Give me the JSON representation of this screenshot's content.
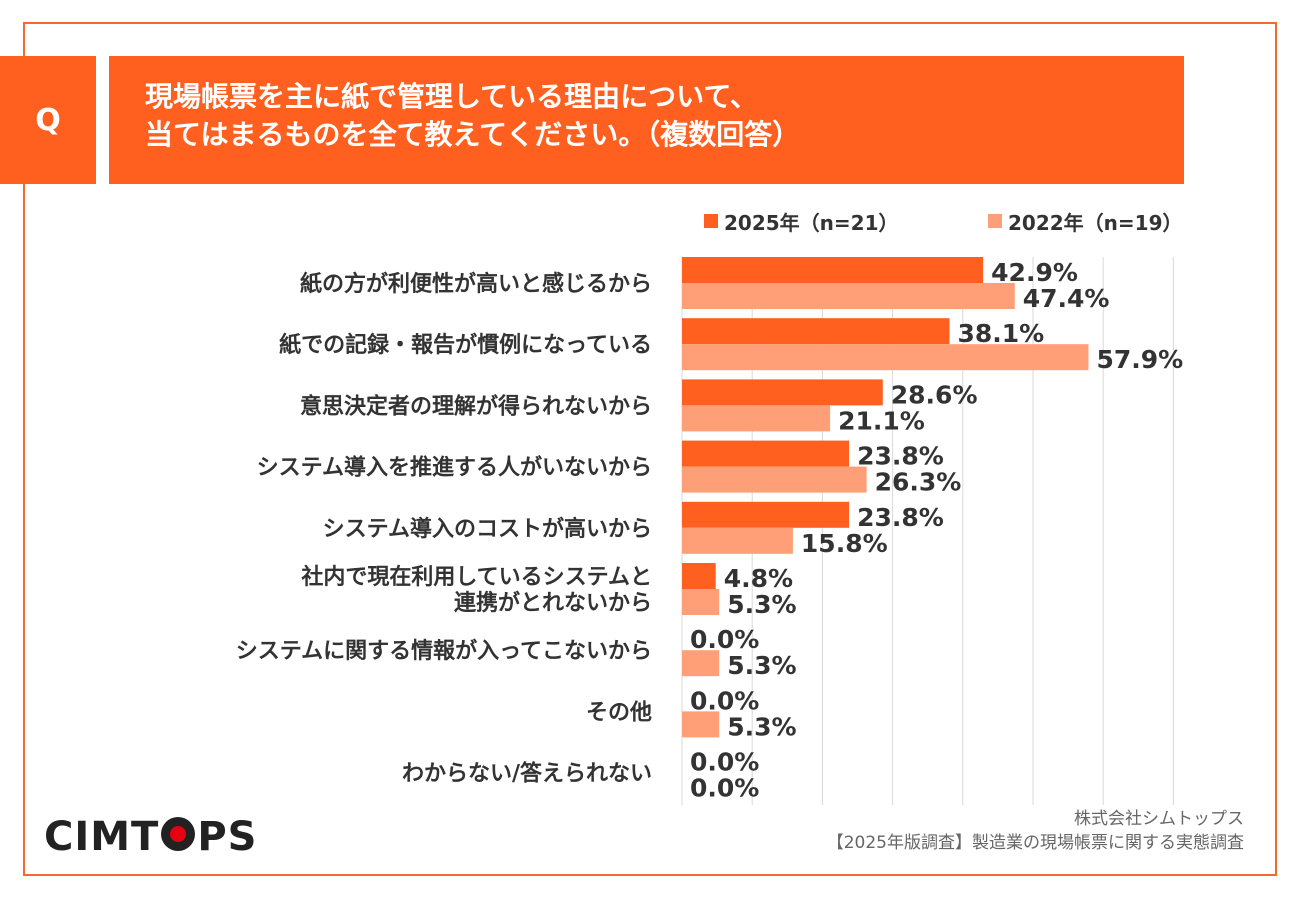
{
  "question_marker": "Q",
  "title": {
    "line1": "現場帳票を主に紙で管理している理由について、",
    "line2": "当てはまるものを全て教えてください。（複数回答）"
  },
  "footer": {
    "company": "株式会社シムトップス",
    "source": "【2025年版調査】製造業の現場帳票に関する実態調査"
  },
  "logo": {
    "left": "CIMT",
    "right": "PS"
  },
  "colors": {
    "accent": "#ff5f1f",
    "series_2025": "#ff5f1f",
    "series_2022": "#ff9f78",
    "grid": "#d9d9d9"
  },
  "chart_data": {
    "type": "bar",
    "orientation": "horizontal",
    "categories": [
      [
        "紙の方が利便性が高いと感じるから"
      ],
      [
        "紙での記録・報告が慣例になっている"
      ],
      [
        "意思決定者の理解が得られないから"
      ],
      [
        "システム導入を推進する人がいないから"
      ],
      [
        "システム導入のコストが高いから"
      ],
      [
        "社内で現在利用しているシステムと",
        "連携がとれないから"
      ],
      [
        "システムに関する情報が入ってこないから"
      ],
      [
        "その他"
      ],
      [
        "わからない/答えられない"
      ]
    ],
    "series": [
      {
        "name": "2025年（n=21）",
        "values": [
          42.9,
          38.1,
          28.6,
          23.8,
          23.8,
          4.8,
          0.0,
          0.0,
          0.0
        ]
      },
      {
        "name": "2022年（n=19）",
        "values": [
          47.4,
          57.9,
          21.1,
          26.3,
          15.8,
          5.3,
          5.3,
          5.3,
          0.0
        ]
      }
    ],
    "value_format": "percent_1dp",
    "xlim": [
      0,
      70
    ],
    "grid": true,
    "legend_position": "top"
  }
}
